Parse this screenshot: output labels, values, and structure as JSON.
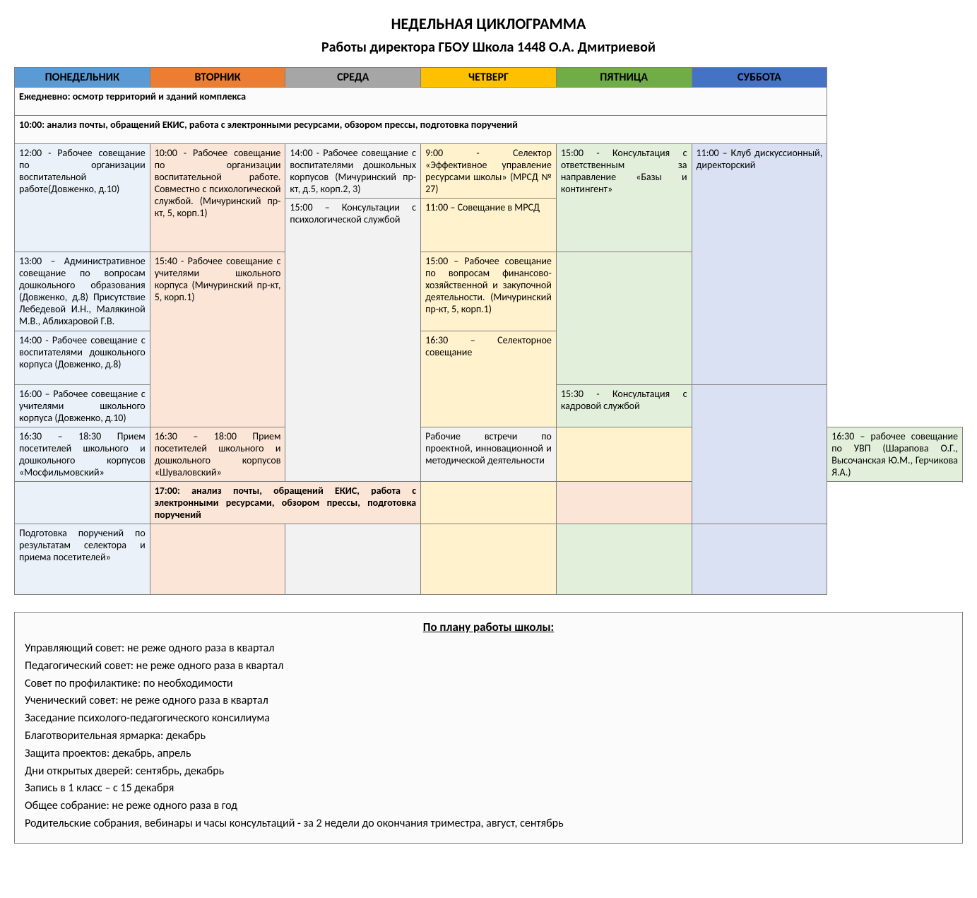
{
  "titles": {
    "main": "НЕДЕЛЬНАЯ ЦИКЛОГРАММА",
    "sub": "Работы директора ГБОУ Школа 1448 О.А. Дмитриевой"
  },
  "days": [
    {
      "label": "ПОНЕДЕЛЬНИК",
      "header_bg": "#5b9bd5",
      "cell_bg": "#eaf1f8"
    },
    {
      "label": "ВТОРНИК",
      "header_bg": "#ed7d31",
      "cell_bg": "#fbe5d6"
    },
    {
      "label": "СРЕДА",
      "header_bg": "#a6a6a6",
      "cell_bg": "#f2f2f2"
    },
    {
      "label": "ЧЕТВЕРГ",
      "header_bg": "#ffc000",
      "cell_bg": "#fff2cc"
    },
    {
      "label": "ПЯТНИЦА",
      "header_bg": "#70ad47",
      "cell_bg": "#e2efda"
    },
    {
      "label": "СУББОТА",
      "header_bg": "#4472c4",
      "cell_bg": "#d9e1f2"
    }
  ],
  "span_rows": {
    "daily_inspection": "Ежедневно: осмотр территорий и зданий комплекса",
    "morning_analysis": "10:00: анализ почты, обращений ЕКИС, работа с электронными ресурсами, обзором прессы, подготовка поручений",
    "evening_analysis": "17:00: анализ почты, обращений ЕКИС, работа с электронными ресурсами, обзором прессы, подготовка поручений"
  },
  "cells": {
    "mon_1200": "12:00 - Рабочее совещание по организации воспитательной работе(Довженко, д.10)",
    "mon_1300": "13:00 – Административное совещание по вопросам дошкольного образования (Довженко, д.8) Присутствие Лебедевой И.Н., Малякиной М.В., Аблихаровой Г.В.",
    "mon_1400": "14:00 - Рабочее совещание с воспитателями дошкольного корпуса (Довженко, д.8)",
    "mon_1600": "16:00 – Рабочее совещание с учителями школьного корпуса (Довженко, д.10)",
    "mon_1630": "16:30 – 18:30\nПрием посетителей школьного и дошкольного корпусов «Мосфильмовский»",
    "mon_prep": "Подготовка поручений по результатам селектора и приема посетителей»",
    "tue_1000": "10:00 - Рабочее совещание по организации воспитательной работе. Совместно с психологической службой. (Мичуринский пр-кт, 5, корп.1)",
    "tue_1540": "15:40 - Рабочее совещание с учителями школьного корпуса\n(Мичуринский пр-кт, 5, корп.1)",
    "tue_1630": "16:30 – 18:00\nПрием посетителей школьного и дошкольного корпусов «Шуваловский»",
    "wed_1400": "14:00 - Рабочее совещание с воспитателями дошкольных корпусов (Мичуринский пр-кт, д.5, корп.2, 3)",
    "wed_1500": "15:00 – Консультации с психологической службой",
    "wed_meet": "Рабочие встречи по проектной, инновационной и методической деятельности",
    "thu_0900": "9:00 - Селектор «Эффективное управление ресурсами школы» (МРСД № 27)",
    "thu_1100": "11:00 – Совещание в МРСД",
    "thu_1500": "15:00 – Рабочее совещание по вопросам финансово-хозяйственной и закупочной деятельности. (Мичуринский пр-кт, 5, корп.1)",
    "thu_1630": "16:30 – Селекторное совещание",
    "fri_1500": "15:00 - Консультация с ответственным за направление «Базы и контингент»",
    "fri_1530": "15:30 - Консультация с кадровой службой",
    "fri_1630": "16:30 – рабочее совещание по УВП (Шарапова О.Г., Высочанская Ю.М., Герчикова Я.А.)",
    "sat_1100": "11:00 – Клуб дискуссионный, директорский"
  },
  "plan": {
    "title": "По плану работы школы:",
    "items": [
      "Управляющий совет: не реже одного раза в квартал",
      "Педагогический совет: не реже одного раза в квартал",
      "Совет по профилактике: по необходимости",
      "Ученический совет: не реже одного раза в квартал",
      "Заседание психолого-педагогического консилиума",
      "Благотворительная ярмарка: декабрь",
      "Защита проектов: декабрь, апрель",
      "Дни открытых дверей: сентябрь, декабрь",
      "Запись в 1 класс – с 15 декабря",
      "Общее собрание: не реже одного раза в год",
      "Родительские собрания, вебинары и часы консультаций  -  за 2 недели до окончания триместра, август, сентябрь"
    ]
  },
  "row_heights": {
    "span_daily": 40,
    "span_morning": 40,
    "r1": 74,
    "r2": 76,
    "r3": 112,
    "r4": 76,
    "r5": 56,
    "r6": 40,
    "r7": 40,
    "r8": 40,
    "r9": 100
  }
}
